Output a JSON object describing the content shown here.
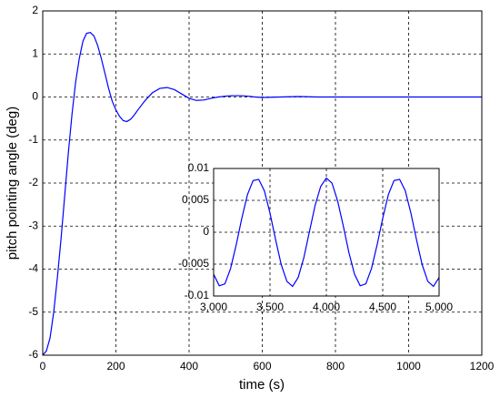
{
  "chart_data": [
    {
      "type": "line",
      "xlabel": "time (s)",
      "ylabel": "pitch pointing angle (deg)",
      "xlim": [
        0,
        1200
      ],
      "ylim": [
        -6,
        2
      ],
      "xticks": [
        0,
        200,
        400,
        600,
        800,
        1000,
        1200
      ],
      "yticks": [
        -6,
        -5,
        -4,
        -3,
        -2,
        -1,
        0,
        1,
        2
      ],
      "grid": true,
      "x": [
        0,
        10,
        20,
        30,
        40,
        50,
        60,
        70,
        80,
        90,
        100,
        110,
        120,
        130,
        140,
        150,
        160,
        170,
        180,
        190,
        200,
        210,
        220,
        230,
        240,
        250,
        260,
        280,
        300,
        320,
        340,
        360,
        380,
        400,
        420,
        440,
        460,
        480,
        500,
        520,
        540,
        560,
        580,
        600,
        650,
        700,
        750,
        800,
        850,
        900,
        950,
        1000,
        1200
      ],
      "series": [
        {
          "color": "#0000ff",
          "values": [
            -6,
            -5.9,
            -5.6,
            -5.0,
            -4.2,
            -3.3,
            -2.3,
            -1.3,
            -0.4,
            0.35,
            0.9,
            1.3,
            1.48,
            1.5,
            1.42,
            1.2,
            0.9,
            0.55,
            0.2,
            -0.1,
            -0.3,
            -0.45,
            -0.55,
            -0.57,
            -0.52,
            -0.42,
            -0.3,
            -0.08,
            0.1,
            0.2,
            0.22,
            0.17,
            0.07,
            -0.03,
            -0.08,
            -0.07,
            -0.03,
            0,
            0.02,
            0.03,
            0.03,
            0.02,
            0,
            -0.01,
            0,
            0.01,
            0,
            0,
            0,
            0,
            0,
            0,
            0
          ]
        }
      ]
    },
    {
      "type": "line",
      "xlim": [
        3000,
        5000
      ],
      "ylim": [
        -0.01,
        0.01
      ],
      "xticks": [
        {
          "value": 3000,
          "label": "3,000"
        },
        {
          "value": 3500,
          "label": "3,500"
        },
        {
          "value": 4000,
          "label": "4,000"
        },
        {
          "value": 4500,
          "label": "4,500"
        },
        {
          "value": 5000,
          "label": "5,000"
        }
      ],
      "yticks": [
        -0.01,
        -0.005,
        0,
        0.005,
        0.01
      ],
      "grid": true,
      "x": [
        3000,
        3050,
        3100,
        3150,
        3200,
        3250,
        3300,
        3350,
        3400,
        3450,
        3500,
        3550,
        3600,
        3650,
        3700,
        3750,
        3800,
        3850,
        3900,
        3950,
        4000,
        4050,
        4100,
        4150,
        4200,
        4250,
        4300,
        4350,
        4400,
        4450,
        4500,
        4550,
        4600,
        4650,
        4700,
        4750,
        4800,
        4850,
        4900,
        4950,
        5000
      ],
      "series": [
        {
          "color": "#0000ff",
          "values": [
            -0.0066,
            -0.0084,
            -0.0081,
            -0.0057,
            -0.002,
            0.0022,
            0.0059,
            0.0081,
            0.0083,
            0.0065,
            0.003,
            -0.0012,
            -0.0051,
            -0.0077,
            -0.0085,
            -0.0071,
            -0.004,
            0.0001,
            0.0042,
            0.0072,
            0.0085,
            0.0077,
            0.0049,
            0.001,
            -0.0032,
            -0.0066,
            -0.0084,
            -0.0081,
            -0.0057,
            -0.002,
            0.0022,
            0.0059,
            0.0081,
            0.0083,
            0.0065,
            0.003,
            -0.0012,
            -0.0051,
            -0.0077,
            -0.0085,
            -0.0071
          ]
        }
      ]
    }
  ]
}
